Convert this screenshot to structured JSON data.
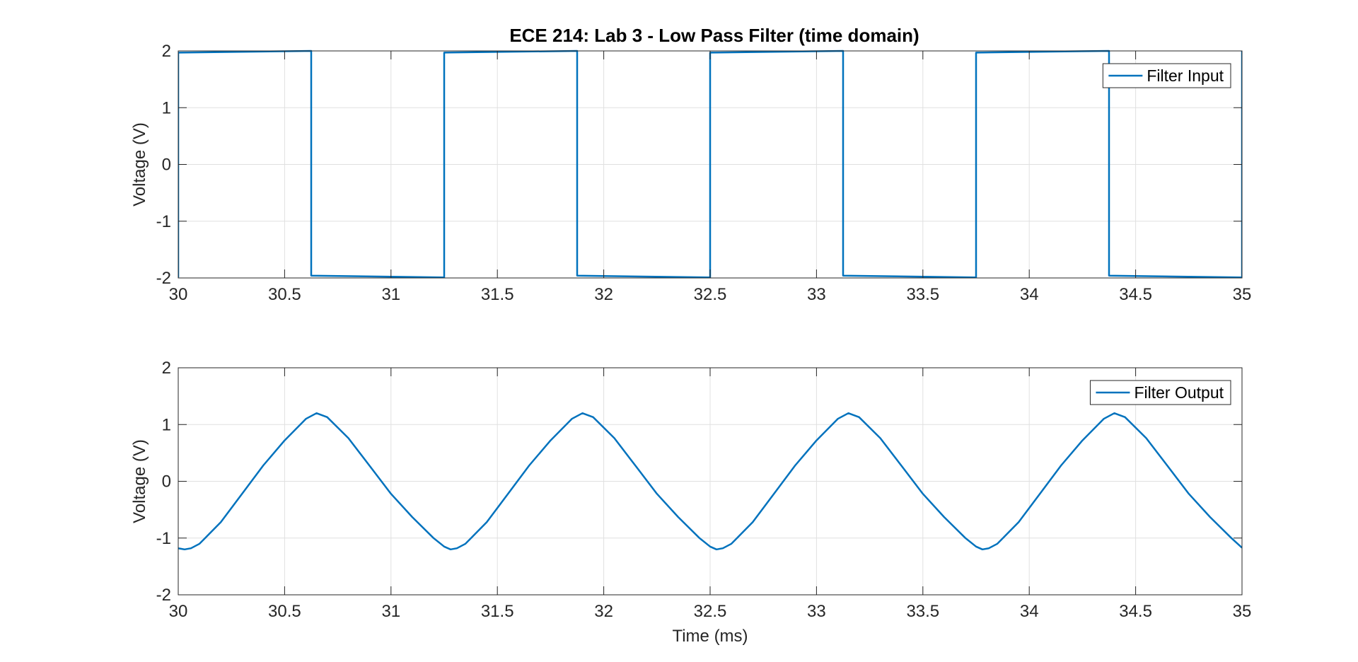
{
  "chart_data": [
    {
      "type": "line",
      "title": "ECE 214: Lab 3 - Low Pass Filter (time domain)",
      "xlabel": "",
      "ylabel": "Voltage (V)",
      "xlim": [
        30,
        35
      ],
      "ylim": [
        -2,
        2
      ],
      "xticks": [
        30,
        30.5,
        31,
        31.5,
        32,
        32.5,
        33,
        33.5,
        34,
        34.5,
        35
      ],
      "xtick_labels": [
        "30",
        "30.5",
        "31",
        "31.5",
        "32",
        "32.5",
        "33",
        "33.5",
        "34",
        "34.5",
        "35"
      ],
      "yticks": [
        -2,
        -1,
        0,
        1,
        2
      ],
      "ytick_labels": [
        "-2",
        "-1",
        "0",
        "1",
        "2"
      ],
      "grid": true,
      "legend_placement": "top-right",
      "series": [
        {
          "name": "Filter Input",
          "color": "#0072BD",
          "x": [
            30.0,
            30.0,
            30.625,
            30.625,
            31.25,
            31.25,
            31.25,
            31.875,
            31.875,
            32.5,
            32.5,
            32.5,
            33.125,
            33.125,
            33.75,
            33.75,
            33.75,
            34.375,
            34.375,
            35.0,
            35.0
          ],
          "y": [
            -1.99,
            1.97,
            2.0,
            -1.96,
            -1.99,
            -1.99,
            1.97,
            2.0,
            -1.96,
            -1.99,
            -1.99,
            1.97,
            2.0,
            -1.96,
            -1.99,
            -1.99,
            1.97,
            2.0,
            -1.96,
            -1.99,
            2.0
          ]
        }
      ]
    },
    {
      "type": "line",
      "title": "",
      "xlabel": "Time (ms)",
      "ylabel": "Voltage (V)",
      "xlim": [
        30,
        35
      ],
      "ylim": [
        -2,
        2
      ],
      "xticks": [
        30,
        30.5,
        31,
        31.5,
        32,
        32.5,
        33,
        33.5,
        34,
        34.5,
        35
      ],
      "xtick_labels": [
        "30",
        "30.5",
        "31",
        "31.5",
        "32",
        "32.5",
        "33",
        "33.5",
        "34",
        "34.5",
        "35"
      ],
      "yticks": [
        -2,
        -1,
        0,
        1,
        2
      ],
      "ytick_labels": [
        "-2",
        "-1",
        "0",
        "1",
        "2"
      ],
      "grid": true,
      "legend_placement": "top-right",
      "series": [
        {
          "name": "Filter Output",
          "color": "#0072BD",
          "x": [
            30.0,
            30.03,
            30.06,
            30.1,
            30.2,
            30.3,
            30.4,
            30.5,
            30.6,
            30.65,
            30.7,
            30.8,
            30.9,
            31.0,
            31.1,
            31.2,
            31.25,
            31.28,
            31.31,
            31.35,
            31.45,
            31.55,
            31.65,
            31.75,
            31.85,
            31.9,
            31.95,
            32.05,
            32.15,
            32.25,
            32.35,
            32.45,
            32.5,
            32.53,
            32.56,
            32.6,
            32.7,
            32.8,
            32.9,
            33.0,
            33.1,
            33.15,
            33.2,
            33.3,
            33.4,
            33.5,
            33.6,
            33.7,
            33.75,
            33.78,
            33.81,
            33.85,
            33.95,
            34.05,
            34.15,
            34.25,
            34.35,
            34.4,
            34.45,
            34.55,
            34.65,
            34.75,
            34.85,
            34.95,
            35.0
          ],
          "y": [
            -1.18,
            -1.2,
            -1.18,
            -1.1,
            -0.72,
            -0.22,
            0.28,
            0.72,
            1.1,
            1.2,
            1.13,
            0.76,
            0.27,
            -0.22,
            -0.63,
            -1.0,
            -1.15,
            -1.2,
            -1.18,
            -1.1,
            -0.72,
            -0.22,
            0.28,
            0.72,
            1.1,
            1.2,
            1.13,
            0.76,
            0.27,
            -0.22,
            -0.63,
            -1.0,
            -1.15,
            -1.2,
            -1.18,
            -1.1,
            -0.72,
            -0.22,
            0.28,
            0.72,
            1.1,
            1.2,
            1.13,
            0.76,
            0.27,
            -0.22,
            -0.63,
            -1.0,
            -1.15,
            -1.2,
            -1.18,
            -1.1,
            -0.72,
            -0.22,
            0.28,
            0.72,
            1.1,
            1.2,
            1.13,
            0.76,
            0.27,
            -0.22,
            -0.63,
            -1.0,
            -1.17
          ]
        }
      ]
    }
  ]
}
